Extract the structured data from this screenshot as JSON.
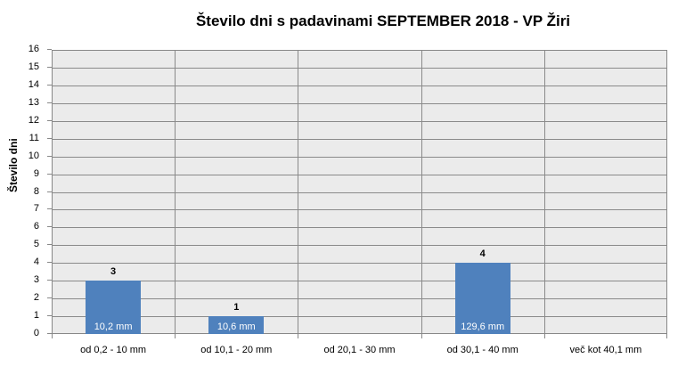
{
  "chart_data": {
    "type": "bar",
    "title": "Število dni s padavinami  SEPTEMBER  2018 - VP Žiri",
    "xlabel": "",
    "ylabel": "Število dni",
    "ylim": [
      0,
      16
    ],
    "yticks": [
      "0",
      "1",
      "2",
      "3",
      "4",
      "5",
      "6",
      "7",
      "8",
      "9",
      "10",
      "11",
      "12",
      "13",
      "14",
      "15",
      "16"
    ],
    "grid": true,
    "legend": null,
    "categories": [
      "od 0,2 - 10 mm",
      "od 10,1 - 20 mm",
      "od 20,1 - 30 mm",
      "od 30,1 - 40 mm",
      "več kot 40,1 mm"
    ],
    "values": [
      3,
      1,
      0,
      4,
      0
    ],
    "data_labels": [
      "3",
      "1",
      "",
      "4",
      ""
    ],
    "inner_labels": [
      "10,2 mm",
      "10,6 mm",
      "",
      "129,6 mm",
      ""
    ],
    "bar_color": "#4f81bd",
    "plot_background": "#ebebeb"
  }
}
